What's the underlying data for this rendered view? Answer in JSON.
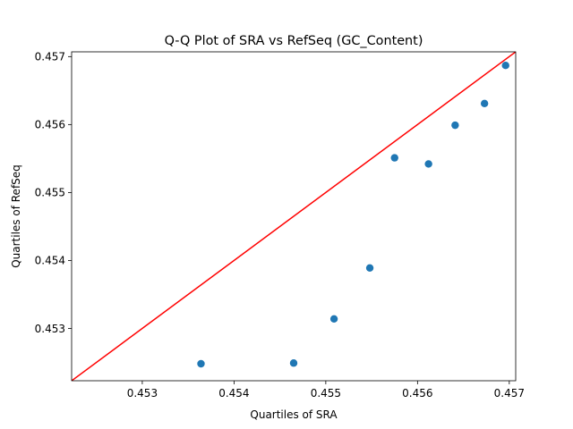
{
  "chart_data": {
    "type": "scatter",
    "title": "Q-Q Plot of SRA vs RefSeq (GC_Content)",
    "xlabel": "Quartiles of SRA",
    "ylabel": "Quartiles of RefSeq",
    "xlim": [
      0.45223,
      0.45707
    ],
    "ylim": [
      0.45223,
      0.45707
    ],
    "xticks": [
      0.453,
      0.454,
      0.455,
      0.456,
      0.457
    ],
    "xtick_labels": [
      "0.453",
      "0.454",
      "0.455",
      "0.456",
      "0.457"
    ],
    "yticks": [
      0.453,
      0.454,
      0.455,
      0.456,
      0.457
    ],
    "ytick_labels": [
      "0.453",
      "0.454",
      "0.455",
      "0.456",
      "0.457"
    ],
    "grid": false,
    "reference_line": {
      "type": "y=x",
      "color": "#ff0000"
    },
    "series": [
      {
        "color": "#1f77b4",
        "x": [
          0.45364,
          0.45465,
          0.45509,
          0.45548,
          0.45575,
          0.45612,
          0.45641,
          0.45673,
          0.45696
        ],
        "y": [
          0.45248,
          0.45249,
          0.45314,
          0.45389,
          0.45551,
          0.45542,
          0.45599,
          0.45631,
          0.45687
        ]
      }
    ]
  }
}
